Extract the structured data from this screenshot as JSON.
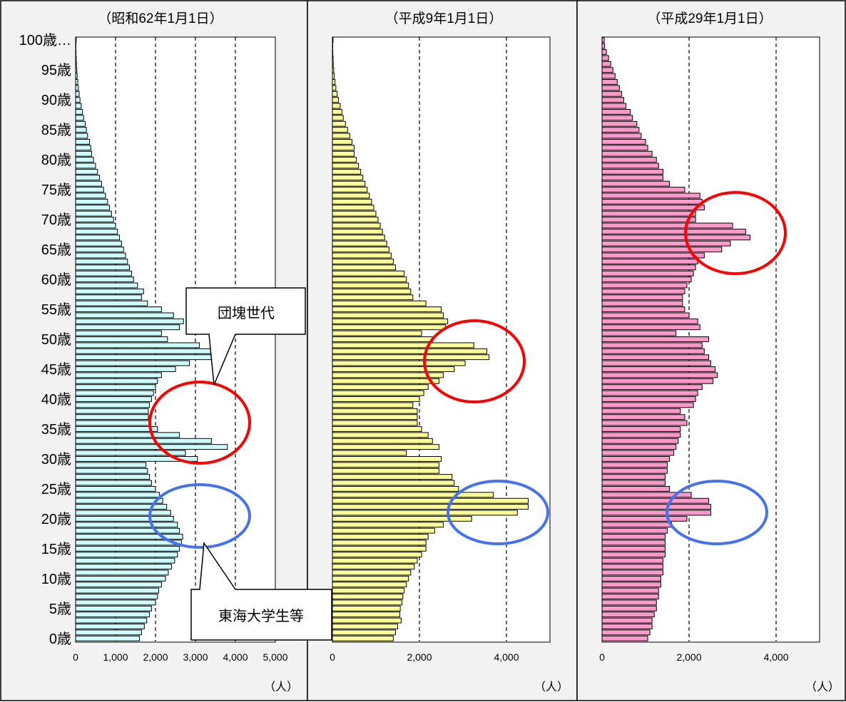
{
  "chart_data": [
    {
      "type": "bar",
      "orientation": "horizontal",
      "title": "（昭和62年1月1日）",
      "unit_label": "（人）",
      "xlim": [
        0,
        5000
      ],
      "x_ticks": [
        "0",
        "1,000",
        "2,000",
        "3,000",
        "4,000",
        "5,000"
      ],
      "grid": "vertical dashed at 1,000 intervals",
      "bar_color": "#cdfdff",
      "age_labels": [
        "0歳",
        "5歳",
        "10歳",
        "15歳",
        "20歳",
        "25歳",
        "30歳",
        "35歳",
        "40歳",
        "45歳",
        "50歳",
        "55歳",
        "60歳",
        "65歳",
        "70歳",
        "75歳",
        "80歳",
        "85歳",
        "90歳",
        "95歳",
        "100歳…"
      ],
      "ages": "0-100",
      "values": [
        1600,
        1650,
        1720,
        1780,
        1850,
        1900,
        2000,
        2050,
        2080,
        2150,
        2250,
        2320,
        2400,
        2480,
        2550,
        2600,
        2650,
        2680,
        2600,
        2550,
        2450,
        2380,
        2280,
        2180,
        2100,
        2000,
        1900,
        1850,
        1800,
        1760,
        3050,
        2750,
        3800,
        3400,
        2600,
        2050,
        1850,
        1820,
        1820,
        1850,
        1900,
        1950,
        2000,
        2050,
        2150,
        2500,
        2850,
        3450,
        3400,
        3100,
        2300,
        2150,
        2600,
        2700,
        2450,
        2150,
        1800,
        1650,
        1700,
        1550,
        1450,
        1400,
        1350,
        1300,
        1250,
        1200,
        1150,
        1100,
        1050,
        1000,
        950,
        900,
        850,
        800,
        750,
        700,
        650,
        600,
        550,
        500,
        450,
        400,
        380,
        350,
        300,
        270,
        240,
        200,
        170,
        140,
        110,
        90,
        70,
        55,
        40,
        30,
        20,
        15,
        10,
        6,
        15
      ],
      "annotations": [
        {
          "label": "団塊世代",
          "highlight_ages": "35-40",
          "color": "red"
        },
        {
          "label": "東海大学生等",
          "highlight_ages": "19-23",
          "color": "blue"
        }
      ]
    },
    {
      "type": "bar",
      "orientation": "horizontal",
      "title": "（平成9年1月1日）",
      "unit_label": "（人）",
      "xlim": [
        0,
        5000
      ],
      "x_ticks": [
        "0",
        "2,000",
        "4,000"
      ],
      "grid": "vertical dashed at 2,000 intervals",
      "bar_color": "#ffff99",
      "ages": "0-100",
      "values": [
        1400,
        1450,
        1500,
        1580,
        1550,
        1560,
        1600,
        1620,
        1650,
        1700,
        1750,
        1800,
        1880,
        1950,
        2050,
        2150,
        2150,
        2200,
        2350,
        2550,
        3200,
        4250,
        4500,
        4500,
        3700,
        2900,
        2800,
        2750,
        2450,
        2450,
        2500,
        1700,
        2450,
        2300,
        2200,
        2050,
        1950,
        1950,
        1950,
        1850,
        2000,
        2100,
        2200,
        2450,
        2550,
        2800,
        3050,
        3600,
        3550,
        3250,
        2300,
        2050,
        2600,
        2650,
        2550,
        2500,
        2150,
        1850,
        1800,
        1750,
        1700,
        1650,
        1450,
        1400,
        1350,
        1300,
        1250,
        1200,
        1150,
        1100,
        1050,
        1000,
        950,
        900,
        850,
        800,
        750,
        700,
        650,
        600,
        550,
        500,
        500,
        450,
        400,
        350,
        300,
        250,
        220,
        180,
        140,
        110,
        80,
        60,
        45,
        30,
        20,
        15,
        10,
        5,
        15
      ],
      "annotations": [
        {
          "highlight_ages": "45-50",
          "color": "red"
        },
        {
          "highlight_ages": "20-25",
          "color": "blue"
        }
      ]
    },
    {
      "type": "bar",
      "orientation": "horizontal",
      "title": "（平成29年1月1日）",
      "unit_label": "（人）",
      "xlim": [
        0,
        5000
      ],
      "x_ticks": [
        "0",
        "2,000",
        "4,000"
      ],
      "grid": "vertical dashed at 2,000 intervals",
      "bar_color": "#ff99cc",
      "ages": "0-100",
      "values": [
        1050,
        1100,
        1150,
        1150,
        1200,
        1250,
        1250,
        1300,
        1300,
        1350,
        1350,
        1400,
        1400,
        1400,
        1450,
        1450,
        1450,
        1450,
        1500,
        1600,
        1950,
        2500,
        2500,
        2450,
        2050,
        1550,
        1450,
        1450,
        1500,
        1500,
        1550,
        1650,
        1700,
        1750,
        1800,
        1800,
        1950,
        1900,
        1800,
        2100,
        2150,
        2200,
        2300,
        2550,
        2650,
        2600,
        2500,
        2450,
        2350,
        2300,
        2450,
        1700,
        2250,
        2200,
        2000,
        1900,
        1850,
        1850,
        1900,
        1950,
        2050,
        2100,
        2150,
        2200,
        2350,
        2750,
        2950,
        3400,
        3300,
        3000,
        2150,
        2150,
        2350,
        2300,
        2250,
        1900,
        1550,
        1400,
        1400,
        1300,
        1250,
        1150,
        1050,
        1000,
        900,
        850,
        800,
        700,
        650,
        550,
        500,
        450,
        400,
        350,
        300,
        250,
        200,
        150,
        100,
        60,
        50
      ],
      "annotations": [
        {
          "highlight_ages": "65-70",
          "color": "red"
        },
        {
          "highlight_ages": "20-24",
          "color": "blue"
        }
      ]
    }
  ]
}
